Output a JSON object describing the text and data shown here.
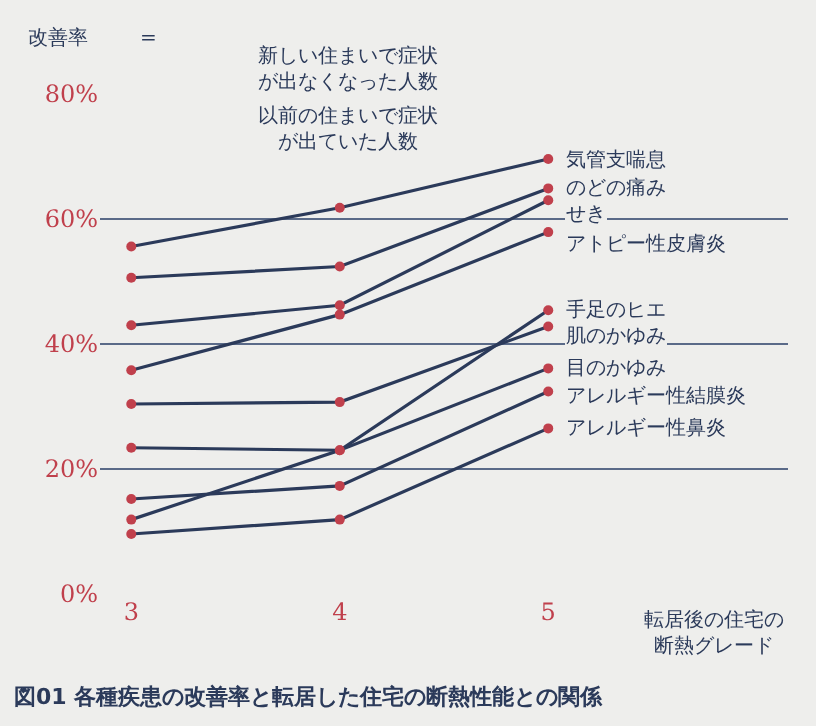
{
  "chart_data": {
    "type": "line",
    "title": "図01 各種疾患の改善率と転居した住宅の断熱性能との関係",
    "ylabel": "改善率",
    "xlabel": "転居後の住宅の断熱グレード",
    "annotations": [
      "=",
      "新しい住まいで症状が出なくなった人数",
      "以前の住まいで症状が出ていた人数"
    ],
    "x": [
      3,
      4,
      5
    ],
    "xlim": [
      2.85,
      6.15
    ],
    "xticks": [
      3,
      4,
      5
    ],
    "ylim": [
      0,
      80
    ],
    "yticks": [
      {
        "value": 0,
        "label": "0%"
      },
      {
        "value": 20,
        "label": "20%"
      },
      {
        "value": 40,
        "label": "40%"
      },
      {
        "value": 60,
        "label": "60%"
      },
      {
        "value": 80,
        "label": "80%"
      }
    ],
    "grid": "y",
    "marker": "circle",
    "line_style": "solid",
    "legend": false,
    "series": [
      {
        "name": "気管支喘息",
        "color": "#2b3a5a",
        "values": [
          55.6,
          61.8,
          69.6
        ]
      },
      {
        "name": "のどの痛み",
        "color": "#2b3a5a",
        "values": [
          50.6,
          52.4,
          64.9
        ]
      },
      {
        "name": "せき",
        "color": "#2b3a5a",
        "values": [
          43.0,
          46.2,
          63.0
        ]
      },
      {
        "name": "アトピー性皮膚炎",
        "color": "#2b3a5a",
        "values": [
          35.8,
          44.7,
          57.9
        ]
      },
      {
        "name": "手足のヒエ",
        "color": "#2b3a5a",
        "values": [
          11.9,
          23.0,
          45.4
        ]
      },
      {
        "name": "肌のかゆみ",
        "color": "#2b3a5a",
        "values": [
          30.4,
          30.7,
          42.8
        ]
      },
      {
        "name": "目のかゆみ",
        "color": "#2b3a5a",
        "values": [
          23.4,
          23.0,
          36.1
        ]
      },
      {
        "name": "アレルギー性結膜炎",
        "color": "#2b3a5a",
        "values": [
          15.2,
          17.3,
          32.4
        ]
      },
      {
        "name": "アレルギー性鼻炎",
        "color": "#2b3a5a",
        "values": [
          9.6,
          11.9,
          26.5
        ]
      }
    ]
  }
}
